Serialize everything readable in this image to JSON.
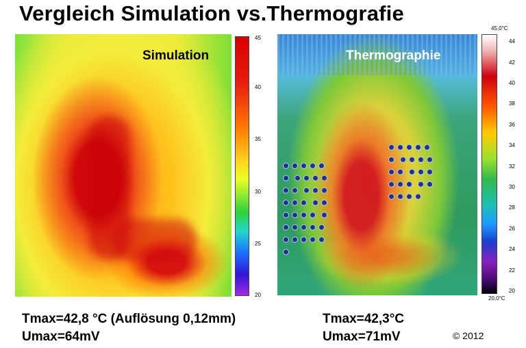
{
  "slide": {
    "title": "Vergleich Simulation vs.Thermografie",
    "copyright": "© 2012"
  },
  "simulation": {
    "label": "Simulation",
    "colorbar": {
      "ticks": [
        "45",
        "40",
        "35",
        "30",
        "25",
        "20"
      ],
      "colors_top_to_bottom": [
        "#d80000",
        "#ff7a00",
        "#ffd21c",
        "#2bd13b",
        "#1a78ff",
        "#9c2ce0"
      ]
    },
    "tmax": "Tmax=42,8 °C (Auflösung 0,12mm)",
    "umax": "Umax=64mV"
  },
  "thermography": {
    "label": "Thermographie",
    "colorbar": {
      "max_label": "45,0°C",
      "min_label": "20,0°C",
      "ticks": [
        "44",
        "42",
        "40",
        "38",
        "36",
        "34",
        "32",
        "30",
        "28",
        "26",
        "24",
        "22",
        "20"
      ],
      "colors_top_to_bottom": [
        "#ffffff",
        "#d10010",
        "#ffcc00",
        "#2fb94e",
        "#1d9cff",
        "#8a1fbf",
        "#000000"
      ]
    },
    "tmax": "Tmax=42,3°C",
    "umax": "Umax=71mV"
  }
}
